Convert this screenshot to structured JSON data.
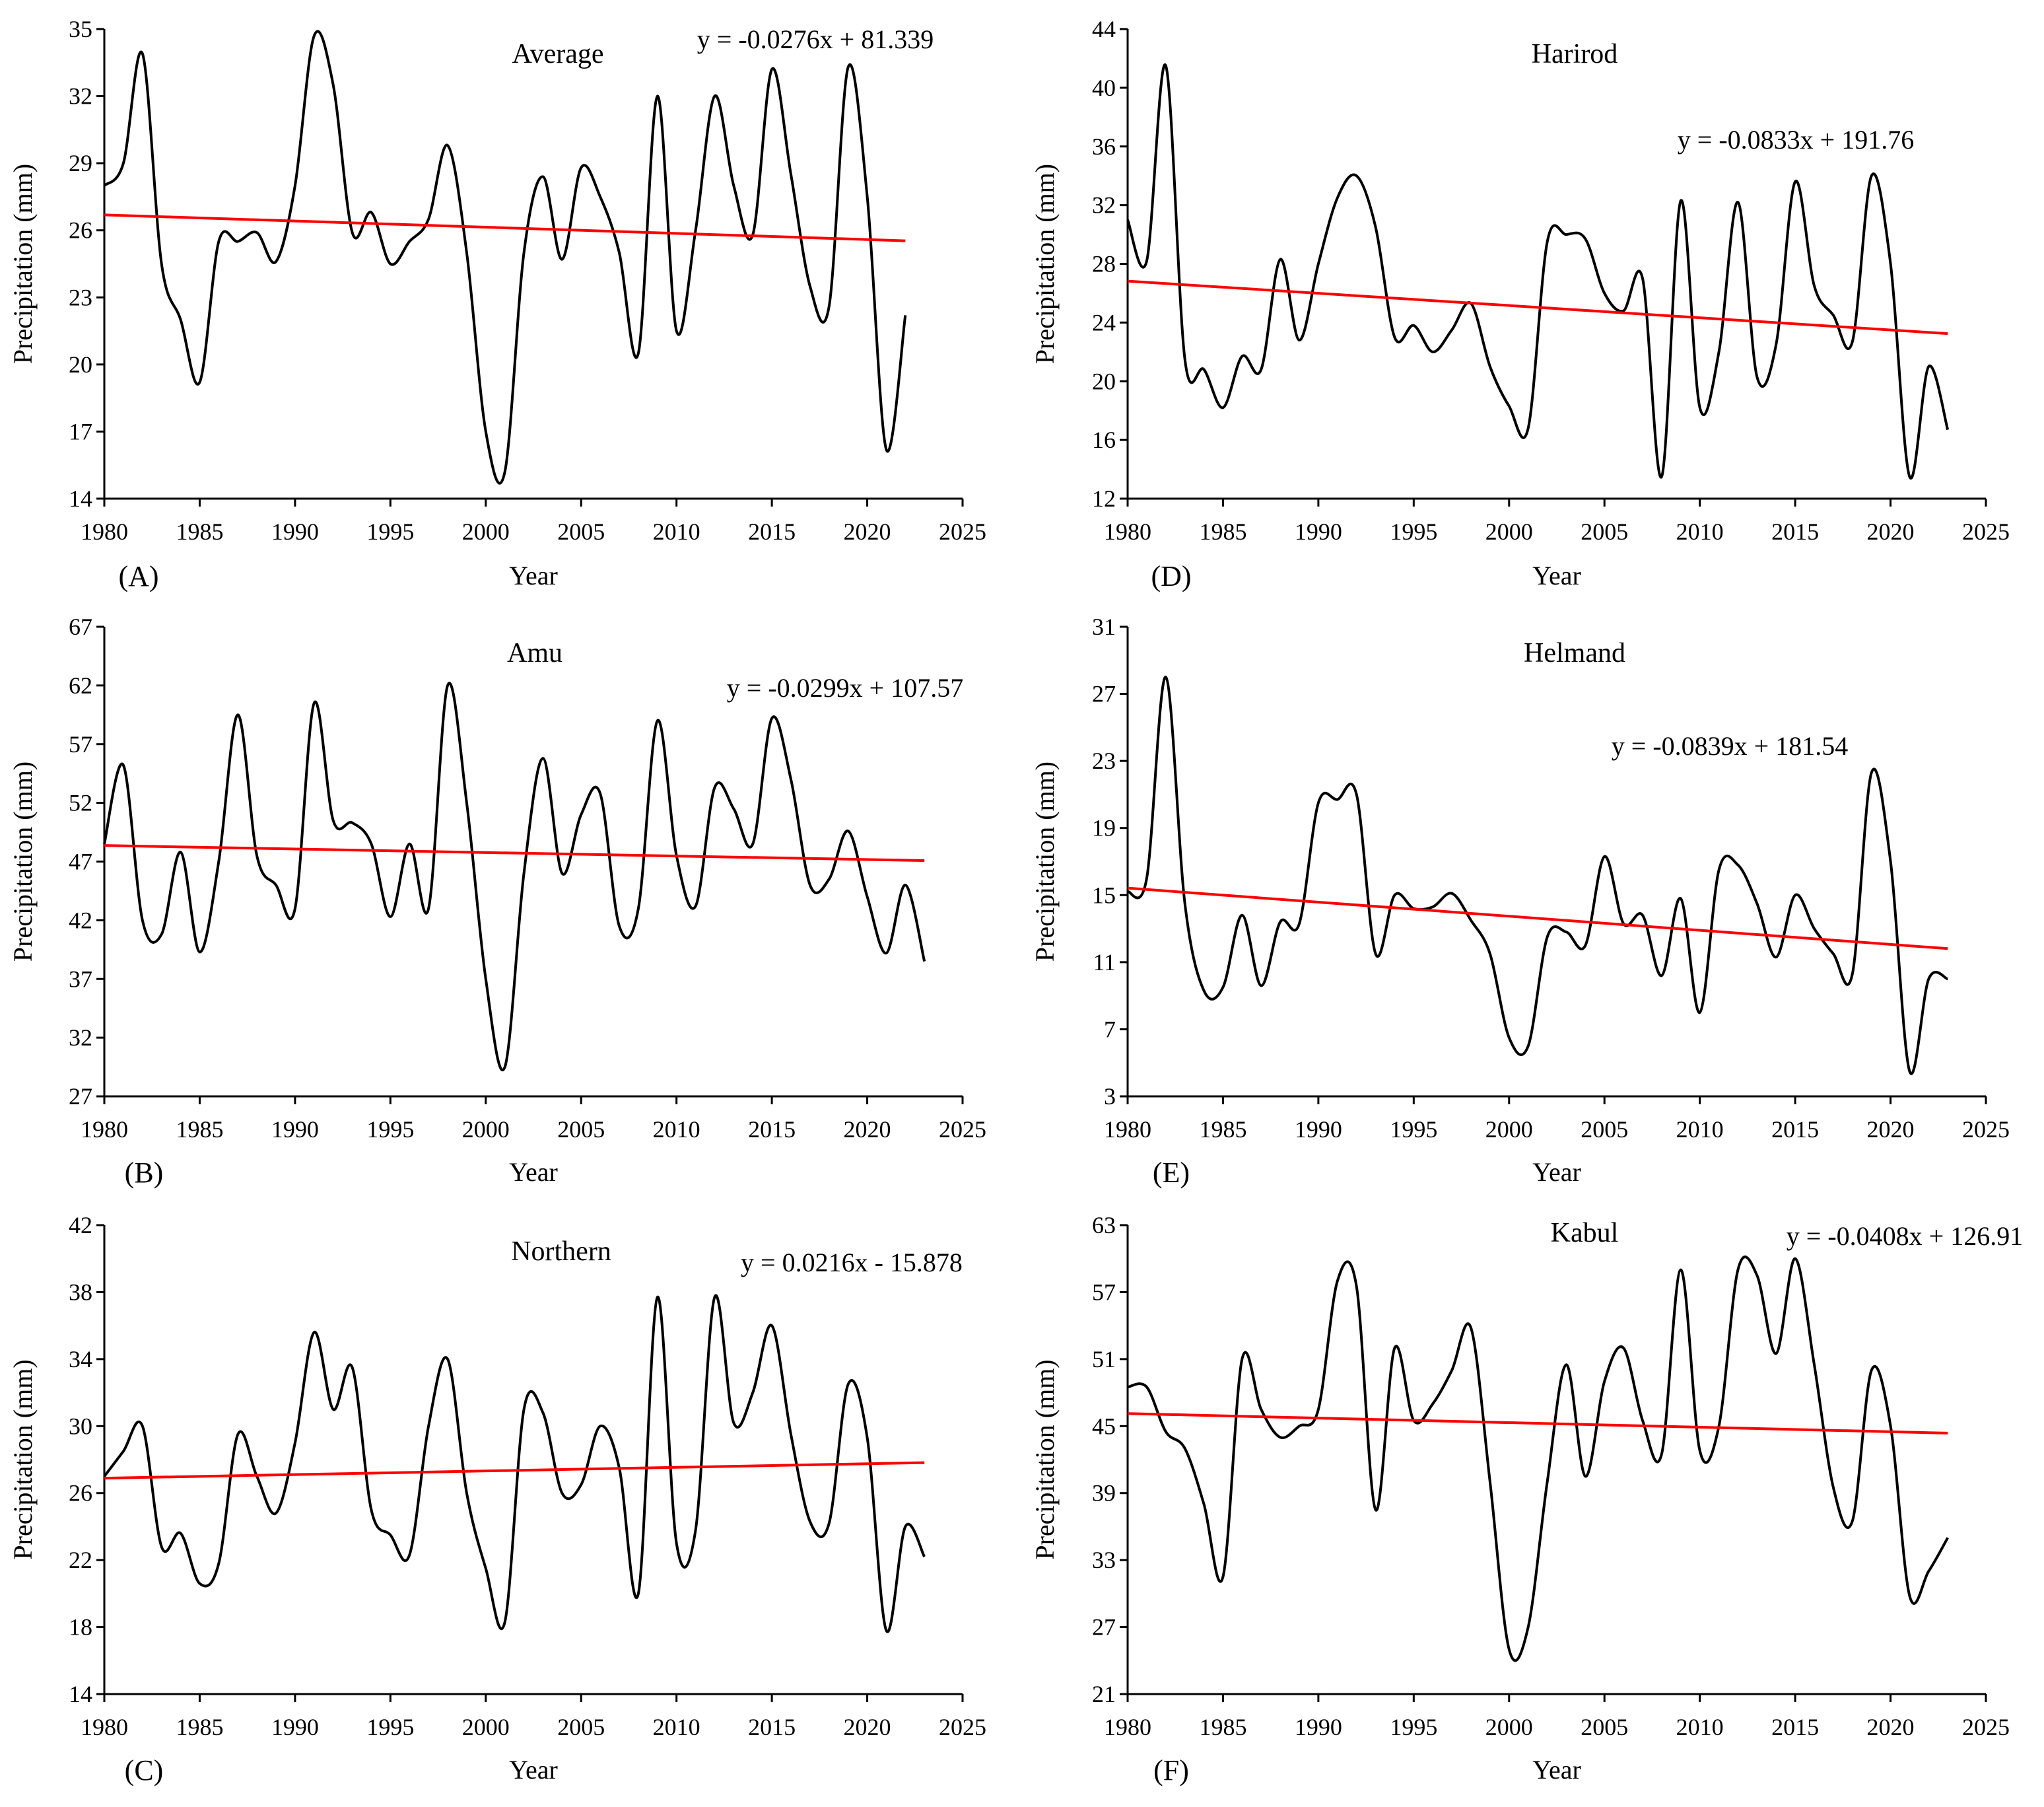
{
  "figure": {
    "xlabel": "Year",
    "ylabel": "Precipitation (mm)"
  },
  "colors": {
    "series": "#000000",
    "trend": "#ff0000",
    "axis": "#000000"
  },
  "chart_data": [
    {
      "type": "line",
      "panel_label": "(A)",
      "title": "Average",
      "equation": "y = -0.0276x + 81.339",
      "xlabel": "Year",
      "ylabel": "Precipitation (mm)",
      "xlim": [
        1980,
        2025
      ],
      "ylim": [
        14,
        35
      ],
      "xticks": [
        1980,
        1985,
        1990,
        1995,
        2000,
        2005,
        2010,
        2015,
        2020,
        2025
      ],
      "yticks": [
        14,
        17,
        20,
        23,
        26,
        29,
        32,
        35
      ],
      "x": [
        1980,
        1981,
        1982,
        1983,
        1984,
        1985,
        1986,
        1987,
        1988,
        1989,
        1990,
        1991,
        1992,
        1993,
        1994,
        1995,
        1996,
        1997,
        1998,
        1999,
        2000,
        2001,
        2002,
        2003,
        2004,
        2005,
        2006,
        2007,
        2008,
        2009,
        2010,
        2011,
        2012,
        2013,
        2014,
        2015,
        2016,
        2017,
        2018,
        2019,
        2020,
        2021,
        2022
      ],
      "series": [
        {
          "name": "Precipitation",
          "values": [
            28.0,
            29.0,
            33.9,
            24.5,
            22.0,
            19.2,
            25.5,
            25.5,
            25.9,
            24.6,
            28.0,
            34.7,
            32.5,
            25.9,
            26.8,
            24.5,
            25.5,
            26.5,
            29.8,
            25.0,
            17.0,
            15.2,
            25.0,
            28.4,
            24.7,
            28.8,
            27.5,
            25.0,
            20.5,
            32.0,
            21.5,
            26.0,
            32.0,
            28.0,
            25.8,
            33.2,
            28.5,
            23.5,
            22.6,
            33.3,
            27.5,
            16.2,
            22.2
          ]
        }
      ],
      "trend": {
        "slope": -0.0276,
        "intercept": 81.339,
        "x_range": [
          1980,
          2022
        ]
      }
    },
    {
      "type": "line",
      "panel_label": "(B)",
      "title": "Amu",
      "equation": "y = -0.0299x + 107.57",
      "xlabel": "Year",
      "ylabel": "Precipitation (mm)",
      "xlim": [
        1980,
        2025
      ],
      "ylim": [
        27,
        67
      ],
      "xticks": [
        1980,
        1985,
        1990,
        1995,
        2000,
        2005,
        2010,
        2015,
        2020,
        2025
      ],
      "yticks": [
        27,
        32,
        37,
        42,
        47,
        52,
        57,
        62,
        67
      ],
      "x": [
        1980,
        1981,
        1982,
        1983,
        1984,
        1985,
        1986,
        1987,
        1988,
        1989,
        1990,
        1991,
        1992,
        1993,
        1994,
        1995,
        1996,
        1997,
        1998,
        1999,
        2000,
        2001,
        2002,
        2003,
        2004,
        2005,
        2006,
        2007,
        2008,
        2009,
        2010,
        2011,
        2012,
        2013,
        2014,
        2015,
        2016,
        2017,
        2018,
        2019,
        2020,
        2021,
        2022,
        2023
      ],
      "series": [
        {
          "name": "Precipitation",
          "values": [
            48.5,
            55.2,
            42.0,
            40.8,
            47.8,
            39.3,
            47.0,
            59.5,
            47.5,
            45.0,
            43.0,
            60.5,
            50.5,
            50.3,
            48.5,
            42.3,
            48.5,
            43.0,
            62.0,
            52.0,
            37.0,
            29.5,
            46.0,
            55.8,
            46.0,
            51.0,
            52.8,
            41.5,
            43.0,
            59.0,
            47.5,
            43.2,
            53.3,
            51.5,
            48.5,
            59.2,
            54.0,
            45.0,
            45.5,
            49.6,
            44.0,
            39.2,
            45.0,
            38.5
          ]
        }
      ],
      "trend": {
        "slope": -0.0299,
        "intercept": 107.57,
        "x_range": [
          1980,
          2023
        ]
      }
    },
    {
      "type": "line",
      "panel_label": "(C)",
      "title": "Northern",
      "equation": "y = 0.0216x - 15.878",
      "xlabel": "Year",
      "ylabel": "Precipitation (mm)",
      "xlim": [
        1980,
        2025
      ],
      "ylim": [
        14,
        42
      ],
      "xticks": [
        1980,
        1985,
        1990,
        1995,
        2000,
        2005,
        2010,
        2015,
        2020,
        2025
      ],
      "yticks": [
        14,
        18,
        22,
        26,
        30,
        34,
        38,
        42
      ],
      "x": [
        1980,
        1981,
        1982,
        1983,
        1984,
        1985,
        1986,
        1987,
        1988,
        1989,
        1990,
        1991,
        1992,
        1993,
        1994,
        1995,
        1996,
        1997,
        1998,
        1999,
        2000,
        2001,
        2002,
        2003,
        2004,
        2005,
        2006,
        2007,
        2008,
        2009,
        2010,
        2011,
        2012,
        2013,
        2014,
        2015,
        2016,
        2017,
        2018,
        2019,
        2020,
        2021,
        2022,
        2023
      ],
      "series": [
        {
          "name": "Precipitation",
          "values": [
            27.0,
            28.5,
            30.0,
            22.8,
            23.6,
            20.6,
            21.8,
            29.5,
            27.0,
            24.8,
            29.0,
            35.6,
            31.0,
            33.5,
            25.0,
            23.5,
            22.3,
            30.0,
            34.0,
            26.0,
            21.5,
            18.3,
            31.0,
            30.8,
            26.0,
            26.5,
            30.0,
            27.5,
            20.0,
            37.7,
            23.0,
            23.8,
            37.7,
            30.2,
            32.0,
            36.0,
            29.5,
            24.3,
            24.2,
            32.5,
            29.3,
            17.8,
            24.0,
            22.2
          ]
        }
      ],
      "trend": {
        "slope": 0.0216,
        "intercept": -15.878,
        "x_range": [
          1980,
          2023
        ]
      }
    },
    {
      "type": "line",
      "panel_label": "(D)",
      "title": "Harirod",
      "equation": "y = -0.0833x + 191.76",
      "xlabel": "Year",
      "ylabel": "Precipitation (mm)",
      "xlim": [
        1980,
        2025
      ],
      "ylim": [
        12,
        44
      ],
      "xticks": [
        1980,
        1985,
        1990,
        1995,
        2000,
        2005,
        2010,
        2015,
        2020,
        2025
      ],
      "yticks": [
        12,
        16,
        20,
        24,
        28,
        32,
        36,
        40,
        44
      ],
      "x": [
        1980,
        1981,
        1982,
        1983,
        1984,
        1985,
        1986,
        1987,
        1988,
        1989,
        1990,
        1991,
        1992,
        1993,
        1994,
        1995,
        1996,
        1997,
        1998,
        1999,
        2000,
        2001,
        2002,
        2003,
        2004,
        2005,
        2006,
        2007,
        2008,
        2009,
        2010,
        2011,
        2012,
        2013,
        2014,
        2015,
        2016,
        2017,
        2018,
        2019,
        2020,
        2021,
        2022,
        2023
      ],
      "series": [
        {
          "name": "Precipitation",
          "values": [
            31.0,
            28.2,
            41.5,
            21.5,
            20.8,
            18.2,
            21.7,
            20.8,
            28.3,
            22.8,
            28.0,
            32.5,
            34.0,
            30.5,
            23.0,
            23.8,
            22.0,
            23.5,
            25.3,
            21.0,
            18.3,
            16.8,
            29.5,
            30.0,
            29.7,
            26.0,
            24.8,
            27.0,
            13.5,
            32.3,
            18.2,
            22.0,
            32.2,
            20.3,
            22.5,
            33.6,
            26.5,
            24.5,
            22.7,
            34.0,
            28.0,
            13.5,
            21.0,
            16.7
          ]
        }
      ],
      "trend": {
        "slope": -0.0833,
        "intercept": 191.76,
        "x_range": [
          1980,
          2023
        ]
      }
    },
    {
      "type": "line",
      "panel_label": "(E)",
      "title": "Helmand",
      "equation": "y = -0.0839x + 181.54",
      "xlabel": "Year",
      "ylabel": "Precipitation (mm)",
      "xlim": [
        1980,
        2025
      ],
      "ylim": [
        3,
        31
      ],
      "xticks": [
        1980,
        1985,
        1990,
        1995,
        2000,
        2005,
        2010,
        2015,
        2020,
        2025
      ],
      "yticks": [
        3,
        7,
        11,
        15,
        19,
        23,
        27,
        31
      ],
      "x": [
        1980,
        1981,
        1982,
        1983,
        1984,
        1985,
        1986,
        1987,
        1988,
        1989,
        1990,
        1991,
        1992,
        1993,
        1994,
        1995,
        1996,
        1997,
        1998,
        1999,
        2000,
        2001,
        2002,
        2003,
        2004,
        2005,
        2006,
        2007,
        2008,
        2009,
        2010,
        2011,
        2012,
        2013,
        2014,
        2015,
        2016,
        2017,
        2018,
        2019,
        2020,
        2021,
        2022,
        2023
      ],
      "series": [
        {
          "name": "Precipitation",
          "values": [
            15.2,
            16.0,
            28.0,
            14.5,
            9.3,
            9.5,
            13.8,
            9.6,
            13.4,
            13.3,
            20.5,
            20.7,
            21.0,
            11.5,
            15.0,
            14.2,
            14.3,
            15.1,
            13.5,
            11.5,
            6.5,
            6.0,
            12.5,
            12.8,
            12.0,
            17.3,
            13.3,
            13.8,
            10.2,
            14.8,
            8.0,
            16.5,
            16.8,
            14.5,
            11.3,
            15.0,
            13.0,
            11.5,
            10.3,
            22.3,
            17.0,
            4.5,
            10.0,
            10.0
          ]
        }
      ],
      "trend": {
        "slope": -0.0839,
        "intercept": 181.54,
        "x_range": [
          1980,
          2023
        ]
      }
    },
    {
      "type": "line",
      "panel_label": "(F)",
      "title": "Kabul",
      "equation": "y = -0.0408x + 126.91",
      "xlabel": "Year",
      "ylabel": "Precipitation (mm)",
      "xlim": [
        1980,
        2025
      ],
      "ylim": [
        21,
        63
      ],
      "xticks": [
        1980,
        1985,
        1990,
        1995,
        2000,
        2005,
        2010,
        2015,
        2020,
        2025
      ],
      "yticks": [
        21,
        27,
        33,
        39,
        45,
        51,
        57,
        63
      ],
      "x": [
        1980,
        1981,
        1982,
        1983,
        1984,
        1985,
        1986,
        1987,
        1988,
        1989,
        1990,
        1991,
        1992,
        1993,
        1994,
        1995,
        1996,
        1997,
        1998,
        1999,
        2000,
        2001,
        2002,
        2003,
        2004,
        2005,
        2006,
        2007,
        2008,
        2009,
        2010,
        2011,
        2012,
        2013,
        2014,
        2015,
        2016,
        2017,
        2018,
        2019,
        2020,
        2021,
        2022,
        2023
      ],
      "series": [
        {
          "name": "Precipitation",
          "values": [
            48.5,
            48.5,
            44.5,
            43.0,
            38.0,
            31.5,
            51.0,
            46.5,
            44.0,
            45.0,
            46.5,
            58.0,
            57.5,
            37.5,
            52.0,
            45.5,
            47.0,
            50.0,
            53.8,
            40.0,
            25.0,
            27.0,
            40.0,
            50.5,
            40.5,
            49.0,
            52.0,
            45.5,
            42.5,
            59.0,
            42.8,
            45.0,
            59.0,
            58.5,
            51.5,
            60.0,
            50.5,
            39.5,
            36.5,
            50.0,
            45.0,
            29.8,
            32.0,
            35.0
          ]
        }
      ],
      "trend": {
        "slope": -0.0408,
        "intercept": 126.91,
        "x_range": [
          1980,
          2023
        ]
      }
    }
  ]
}
